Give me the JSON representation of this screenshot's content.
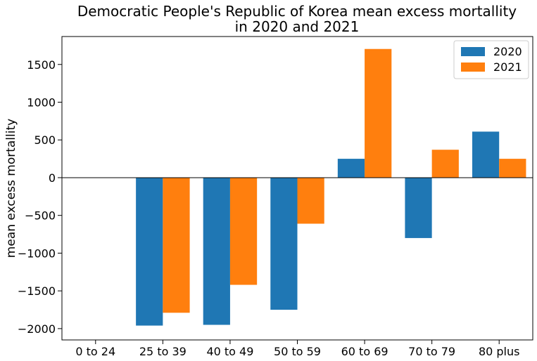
{
  "chart_data": {
    "type": "bar",
    "title_lines": [
      "Democratic People's Republic of Korea mean excess mortallity",
      "in 2020 and 2021"
    ],
    "xlabel": "",
    "ylabel": "mean excess mortallity",
    "categories": [
      "0 to 24",
      "25 to 39",
      "40 to 49",
      "50 to 59",
      "60 to 69",
      "70 to 79",
      "80 plus"
    ],
    "series": [
      {
        "name": "2020",
        "color": "#1f77b4",
        "values": [
          0,
          -1960,
          -1950,
          -1750,
          250,
          -800,
          610
        ]
      },
      {
        "name": "2021",
        "color": "#ff7f0e",
        "values": [
          0,
          -1790,
          -1420,
          -610,
          1705,
          370,
          250
        ]
      }
    ],
    "ylim": [
      -2150,
      1870
    ],
    "yticks": [
      -2000,
      -1500,
      -1000,
      -500,
      0,
      500,
      1000,
      1500
    ],
    "legend_position": "top-right",
    "zero_line": true,
    "grid": false
  }
}
